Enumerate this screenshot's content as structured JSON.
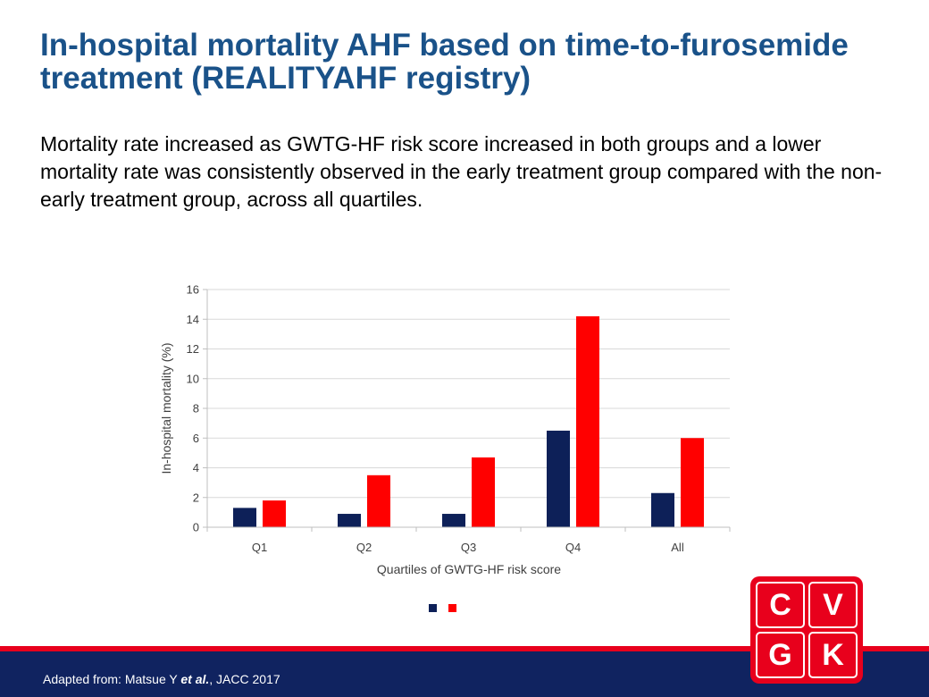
{
  "slide": {
    "title": "In-hospital mortality AHF based on time-to-furosemide treatment (REALITYAHF registry)",
    "subtitle": "Mortality rate increased as GWTG-HF risk score increased in both groups and a lower mortality rate was consistently observed in the early treatment group compared with the non-early treatment group, across all quartiles."
  },
  "chart_data": {
    "type": "bar",
    "categories": [
      "Q1",
      "Q2",
      "Q3",
      "Q4",
      "All"
    ],
    "series": [
      {
        "color": "#0d2058",
        "values": [
          1.3,
          0.9,
          0.9,
          6.5,
          2.3
        ]
      },
      {
        "color": "#ff0000",
        "values": [
          1.8,
          3.5,
          4.7,
          14.2,
          6.0
        ]
      }
    ],
    "xlabel": "Quartiles of GWTG-HF risk score",
    "ylabel": "In-hospital mortality (%)",
    "ylim": [
      0,
      16
    ],
    "yticks": [
      0,
      2,
      4,
      6,
      8,
      10,
      12,
      14,
      16
    ],
    "grid": true,
    "legend": "bottom"
  },
  "footer": {
    "prefix": "Adapted from: Matsue Y ",
    "emphasis": "et al.",
    "suffix": ", JACC 2017"
  },
  "logo": {
    "letters": [
      "C",
      "V",
      "G",
      "K"
    ]
  }
}
